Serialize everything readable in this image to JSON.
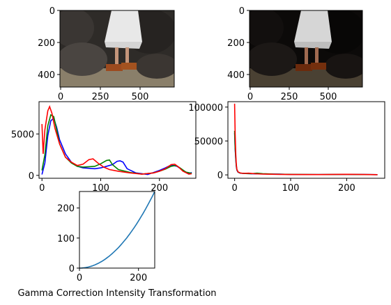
{
  "colors": {
    "blue": "#0000ff",
    "green": "#008000",
    "red": "#ff0000",
    "curve": "#1f77b4"
  },
  "caption": "Gamma Correction Intensity Transformation",
  "images": [
    {
      "id": "original",
      "yticks": [
        "0",
        "200",
        "400"
      ],
      "xticks": [
        "0",
        "250",
        "500"
      ],
      "brightness": 1.0
    },
    {
      "id": "gamma-corrected",
      "yticks": [
        "0",
        "200",
        "400"
      ],
      "xticks": [
        "0",
        "250",
        "500"
      ],
      "brightness": 0.45
    }
  ],
  "chart_data": [
    {
      "type": "line",
      "xlim": [
        -5,
        262
      ],
      "ylim": [
        -350,
        8900
      ],
      "xticks": [
        "0",
        "100",
        "200"
      ],
      "yticks": [
        "0",
        "5000"
      ],
      "series": [
        {
          "color": "blue",
          "points": [
            [
              0,
              100
            ],
            [
              5,
              1500
            ],
            [
              10,
              4800
            ],
            [
              15,
              6600
            ],
            [
              20,
              6900
            ],
            [
              25,
              5800
            ],
            [
              30,
              4300
            ],
            [
              40,
              2600
            ],
            [
              50,
              1600
            ],
            [
              60,
              1100
            ],
            [
              70,
              900
            ],
            [
              80,
              850
            ],
            [
              90,
              800
            ],
            [
              100,
              900
            ],
            [
              110,
              1100
            ],
            [
              120,
              1300
            ],
            [
              128,
              1700
            ],
            [
              133,
              1750
            ],
            [
              138,
              1600
            ],
            [
              145,
              800
            ],
            [
              160,
              300
            ],
            [
              180,
              100
            ],
            [
              200,
              600
            ],
            [
              210,
              900
            ],
            [
              220,
              1250
            ],
            [
              230,
              1100
            ],
            [
              240,
              600
            ],
            [
              250,
              200
            ],
            [
              255,
              350
            ]
          ]
        },
        {
          "color": "green",
          "points": [
            [
              0,
              600
            ],
            [
              5,
              2500
            ],
            [
              10,
              6000
            ],
            [
              15,
              7300
            ],
            [
              20,
              7100
            ],
            [
              25,
              5500
            ],
            [
              30,
              3800
            ],
            [
              40,
              2200
            ],
            [
              50,
              1500
            ],
            [
              60,
              1100
            ],
            [
              70,
              1000
            ],
            [
              80,
              1050
            ],
            [
              90,
              1100
            ],
            [
              100,
              1400
            ],
            [
              110,
              1800
            ],
            [
              115,
              1850
            ],
            [
              120,
              1300
            ],
            [
              130,
              700
            ],
            [
              150,
              350
            ],
            [
              170,
              150
            ],
            [
              190,
              300
            ],
            [
              200,
              500
            ],
            [
              210,
              750
            ],
            [
              220,
              1100
            ],
            [
              228,
              1200
            ],
            [
              235,
              900
            ],
            [
              245,
              400
            ],
            [
              255,
              250
            ]
          ]
        },
        {
          "color": "red",
          "points": [
            [
              0,
              6200
            ],
            [
              2,
              2600
            ],
            [
              5,
              5500
            ],
            [
              10,
              7800
            ],
            [
              13,
              8300
            ],
            [
              17,
              7500
            ],
            [
              22,
              5700
            ],
            [
              30,
              3800
            ],
            [
              40,
              2200
            ],
            [
              50,
              1600
            ],
            [
              60,
              1200
            ],
            [
              70,
              1350
            ],
            [
              80,
              1900
            ],
            [
              87,
              2000
            ],
            [
              95,
              1500
            ],
            [
              105,
              1000
            ],
            [
              115,
              700
            ],
            [
              130,
              500
            ],
            [
              150,
              300
            ],
            [
              170,
              150
            ],
            [
              190,
              300
            ],
            [
              200,
              500
            ],
            [
              210,
              800
            ],
            [
              220,
              1300
            ],
            [
              226,
              1350
            ],
            [
              232,
              1050
            ],
            [
              240,
              500
            ],
            [
              250,
              150
            ],
            [
              255,
              200
            ]
          ]
        }
      ]
    },
    {
      "type": "line",
      "xlim": [
        -12,
        268
      ],
      "ylim": [
        -5000,
        108000
      ],
      "xticks": [
        "0",
        "100",
        "200"
      ],
      "yticks": [
        "0",
        "50000",
        "100000"
      ],
      "series": [
        {
          "color": "blue",
          "points": [
            [
              0,
              62000
            ],
            [
              1,
              38000
            ],
            [
              2,
              22000
            ],
            [
              3,
              12000
            ],
            [
              4,
              7000
            ],
            [
              6,
              4000
            ],
            [
              10,
              2500
            ],
            [
              20,
              2000
            ],
            [
              40,
              1500
            ],
            [
              60,
              1300
            ],
            [
              80,
              1200
            ],
            [
              100,
              700
            ],
            [
              150,
              400
            ],
            [
              200,
              700
            ],
            [
              230,
              500
            ],
            [
              255,
              300
            ]
          ]
        },
        {
          "color": "green",
          "points": [
            [
              0,
              65000
            ],
            [
              1,
              40000
            ],
            [
              2,
              24000
            ],
            [
              3,
              13000
            ],
            [
              4,
              7500
            ],
            [
              6,
              4200
            ],
            [
              10,
              2600
            ],
            [
              20,
              2000
            ],
            [
              30,
              1800
            ],
            [
              40,
              2500
            ],
            [
              50,
              1800
            ],
            [
              70,
              1200
            ],
            [
              100,
              800
            ],
            [
              150,
              400
            ],
            [
              200,
              800
            ],
            [
              230,
              400
            ],
            [
              255,
              300
            ]
          ]
        },
        {
          "color": "red",
          "points": [
            [
              0,
              105000
            ],
            [
              1,
              60000
            ],
            [
              2,
              30000
            ],
            [
              3,
              15000
            ],
            [
              4,
              8000
            ],
            [
              6,
              4500
            ],
            [
              10,
              2800
            ],
            [
              15,
              2200
            ],
            [
              25,
              2500
            ],
            [
              35,
              1800
            ],
            [
              50,
              1200
            ],
            [
              80,
              800
            ],
            [
              100,
              500
            ],
            [
              150,
              400
            ],
            [
              200,
              900
            ],
            [
              230,
              500
            ],
            [
              255,
              350
            ]
          ]
        }
      ]
    },
    {
      "type": "line",
      "xlim": [
        0,
        255
      ],
      "ylim": [
        0,
        255
      ],
      "xticks": [
        "0",
        "200"
      ],
      "yticks": [
        "0",
        "100",
        "200"
      ],
      "gamma": 2.0,
      "series": [
        {
          "color": "curve"
        }
      ]
    }
  ]
}
